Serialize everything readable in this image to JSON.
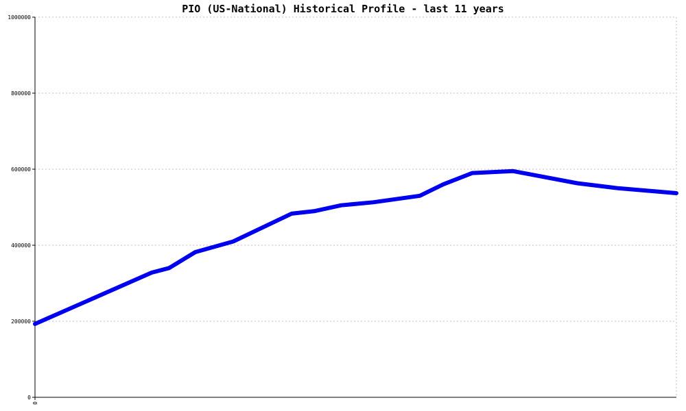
{
  "chart_data": {
    "type": "line",
    "title": "PIO (US-National) Historical Profile - last 11 years",
    "xlabel": "",
    "ylabel": "",
    "ylim": [
      0,
      1000000
    ],
    "yticks": [
      {
        "value": 0,
        "label": "0"
      },
      {
        "value": 200000,
        "label": "200000"
      },
      {
        "value": 400000,
        "label": "400000"
      },
      {
        "value": 600000,
        "label": "600000"
      },
      {
        "value": 800000,
        "label": "800000"
      },
      {
        "value": 1000000,
        "label": "1000000"
      }
    ],
    "xticks": [
      {
        "value": 0,
        "label": "0"
      }
    ],
    "x_range": [
      0,
      11
    ],
    "grid": true,
    "line_color": "#0000ee",
    "series": [
      {
        "name": "",
        "x": [
          0,
          2.0,
          2.3,
          2.75,
          3.4,
          4.4,
          4.8,
          5.25,
          5.8,
          6.6,
          7.0,
          7.5,
          8.2,
          9.3,
          10.0,
          11
        ],
        "y": [
          193000,
          328000,
          340000,
          382000,
          410000,
          483000,
          490000,
          505000,
          513000,
          530000,
          560000,
          590000,
          595000,
          563000,
          550000,
          537000
        ]
      }
    ]
  }
}
